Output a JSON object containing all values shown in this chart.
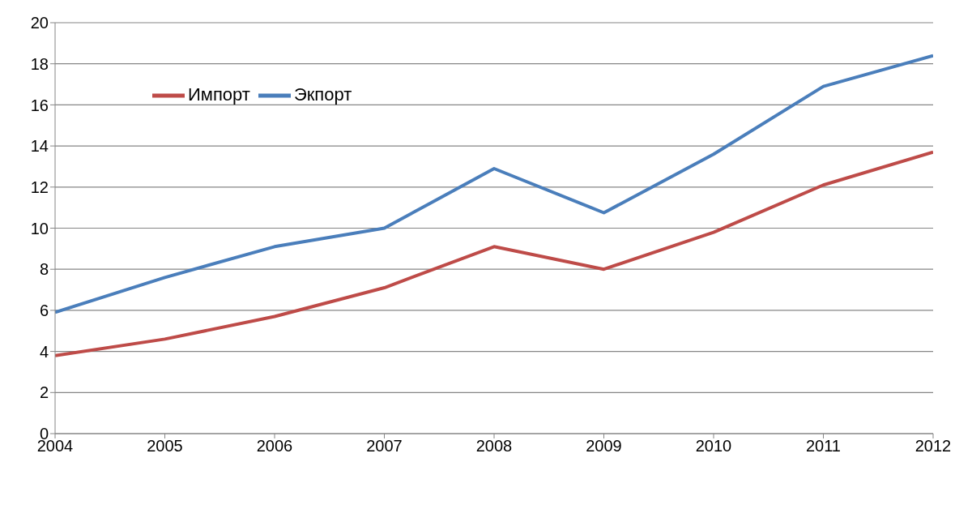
{
  "chart_data": {
    "type": "line",
    "categories": [
      "2004",
      "2005",
      "2006",
      "2007",
      "2008",
      "2009",
      "2010",
      "2011",
      "2012"
    ],
    "series": [
      {
        "name": "Экпорт",
        "color": "#4a7ebb",
        "values": [
          5.9,
          7.6,
          9.1,
          10.0,
          12.9,
          10.75,
          13.6,
          16.9,
          18.4
        ]
      },
      {
        "name": "Импорт",
        "color": "#be4b48",
        "values": [
          3.8,
          4.6,
          5.7,
          7.1,
          9.1,
          8.0,
          9.8,
          12.1,
          13.7
        ]
      }
    ],
    "ylim": [
      0,
      20
    ],
    "yticks": [
      0,
      2,
      4,
      6,
      8,
      10,
      12,
      14,
      16,
      18,
      20
    ],
    "grid": "y",
    "legend": "top left",
    "marker": "none",
    "line_style": "solid"
  }
}
